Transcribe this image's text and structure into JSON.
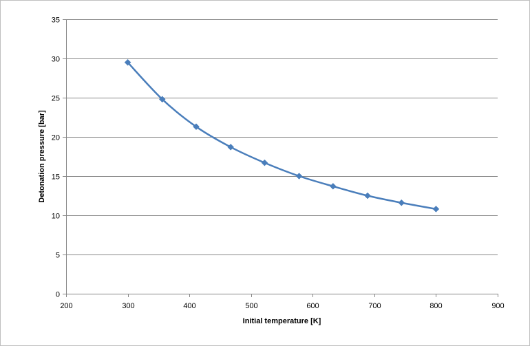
{
  "chart_data": {
    "type": "scatter",
    "title": "",
    "xlabel": "Initial temperature [K]",
    "ylabel": "Detonation pressure [bar]",
    "xlim": [
      200,
      900
    ],
    "ylim": [
      0,
      35
    ],
    "x_ticks": [
      200,
      300,
      400,
      500,
      600,
      700,
      800,
      900
    ],
    "y_ticks": [
      0,
      5,
      10,
      15,
      20,
      25,
      30,
      35
    ],
    "grid": "horizontal",
    "legend": "none",
    "line_style": "smooth",
    "marker": "diamond",
    "series": [
      {
        "color": "#4a7ebb",
        "x": [
          300,
          356,
          411,
          467,
          522,
          578,
          633,
          689,
          744,
          800
        ],
        "y": [
          29.5,
          24.8,
          21.3,
          18.7,
          16.7,
          15.0,
          13.7,
          12.5,
          11.6,
          10.8
        ]
      }
    ]
  }
}
